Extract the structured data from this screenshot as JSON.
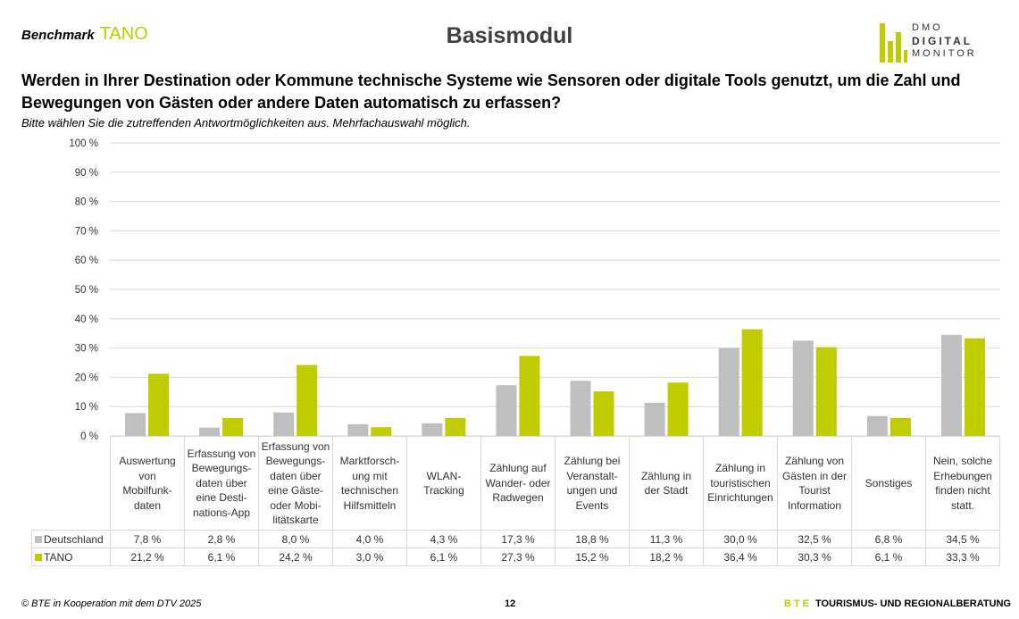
{
  "header": {
    "benchmark_label": "Benchmark",
    "benchmark_region": "TANO",
    "title": "Basismodul",
    "logo": {
      "line1": "DMO",
      "line2": "DIGITAL",
      "line3": "MONITOR"
    }
  },
  "question": "Werden in Ihrer Destination oder Kommune technische Systeme wie Sensoren oder digitale Tools genutzt, um die Zahl und Bewegungen von Gästen oder andere Daten automatisch zu erfassen?",
  "hint": "Bitte wählen Sie die zutreffenden Antwortmöglichkeiten aus. Mehrfachauswahl möglich.",
  "colors": {
    "deutschland": "#bfbfbf",
    "tano": "#bfcc00",
    "grid": "#d9d9d9"
  },
  "chart_data": {
    "type": "bar",
    "ylim": [
      0,
      100
    ],
    "yticks": [
      "0 %",
      "10 %",
      "20 %",
      "30 %",
      "40 %",
      "50 %",
      "60 %",
      "70 %",
      "80 %",
      "90 %",
      "100 %"
    ],
    "grid": true,
    "legend": "data-table",
    "categories": [
      "Auswertung\nvon\nMobilfunk-\ndaten",
      "Erfassung von\nBewegungs-\ndaten über\neine Desti-\nnations-App",
      "Erfassung von\nBewegungs-\ndaten über\neine Gäste-\noder Mobi-\nlitätskarte",
      "Marktforsch-\nung mit\ntechnischen\nHilfsmitteln",
      "WLAN-\nTracking",
      "Zählung auf\nWander- oder\nRadwegen",
      "Zählung bei\nVeranstalt-\nungen und\nEvents",
      "Zählung in\nder Stadt",
      "Zählung in\ntouristischen\nEinrichtungen",
      "Zählung von\nGästen in der\nTourist\nInformation",
      "Sonstiges",
      "Nein, solche\nErhebungen\nfinden nicht\nstatt."
    ],
    "series": [
      {
        "name": "Deutschland",
        "values": [
          7.8,
          2.8,
          8.0,
          4.0,
          4.3,
          17.3,
          18.8,
          11.3,
          30.0,
          32.5,
          6.8,
          34.5
        ],
        "labels": [
          "7,8 %",
          "2,8 %",
          "8,0 %",
          "4,0 %",
          "4,3 %",
          "17,3 %",
          "18,8 %",
          "11,3 %",
          "30,0 %",
          "32,5 %",
          "6,8 %",
          "34,5 %"
        ]
      },
      {
        "name": "TANO",
        "values": [
          21.2,
          6.1,
          24.2,
          3.0,
          6.1,
          27.3,
          15.2,
          18.2,
          36.4,
          30.3,
          6.1,
          33.3
        ],
        "labels": [
          "21,2 %",
          "6,1 %",
          "24,2 %",
          "3,0 %",
          "6,1 %",
          "27,3 %",
          "15,2 %",
          "18,2 %",
          "36,4 %",
          "30,3 %",
          "6,1 %",
          "33,3 %"
        ]
      }
    ]
  },
  "footer": {
    "copyright": "© BTE in Kooperation mit dem DTV 2025",
    "page": "12",
    "bte_mark": "BTE",
    "bte_text": "TOURISMUS- UND REGIONALBERATUNG"
  }
}
